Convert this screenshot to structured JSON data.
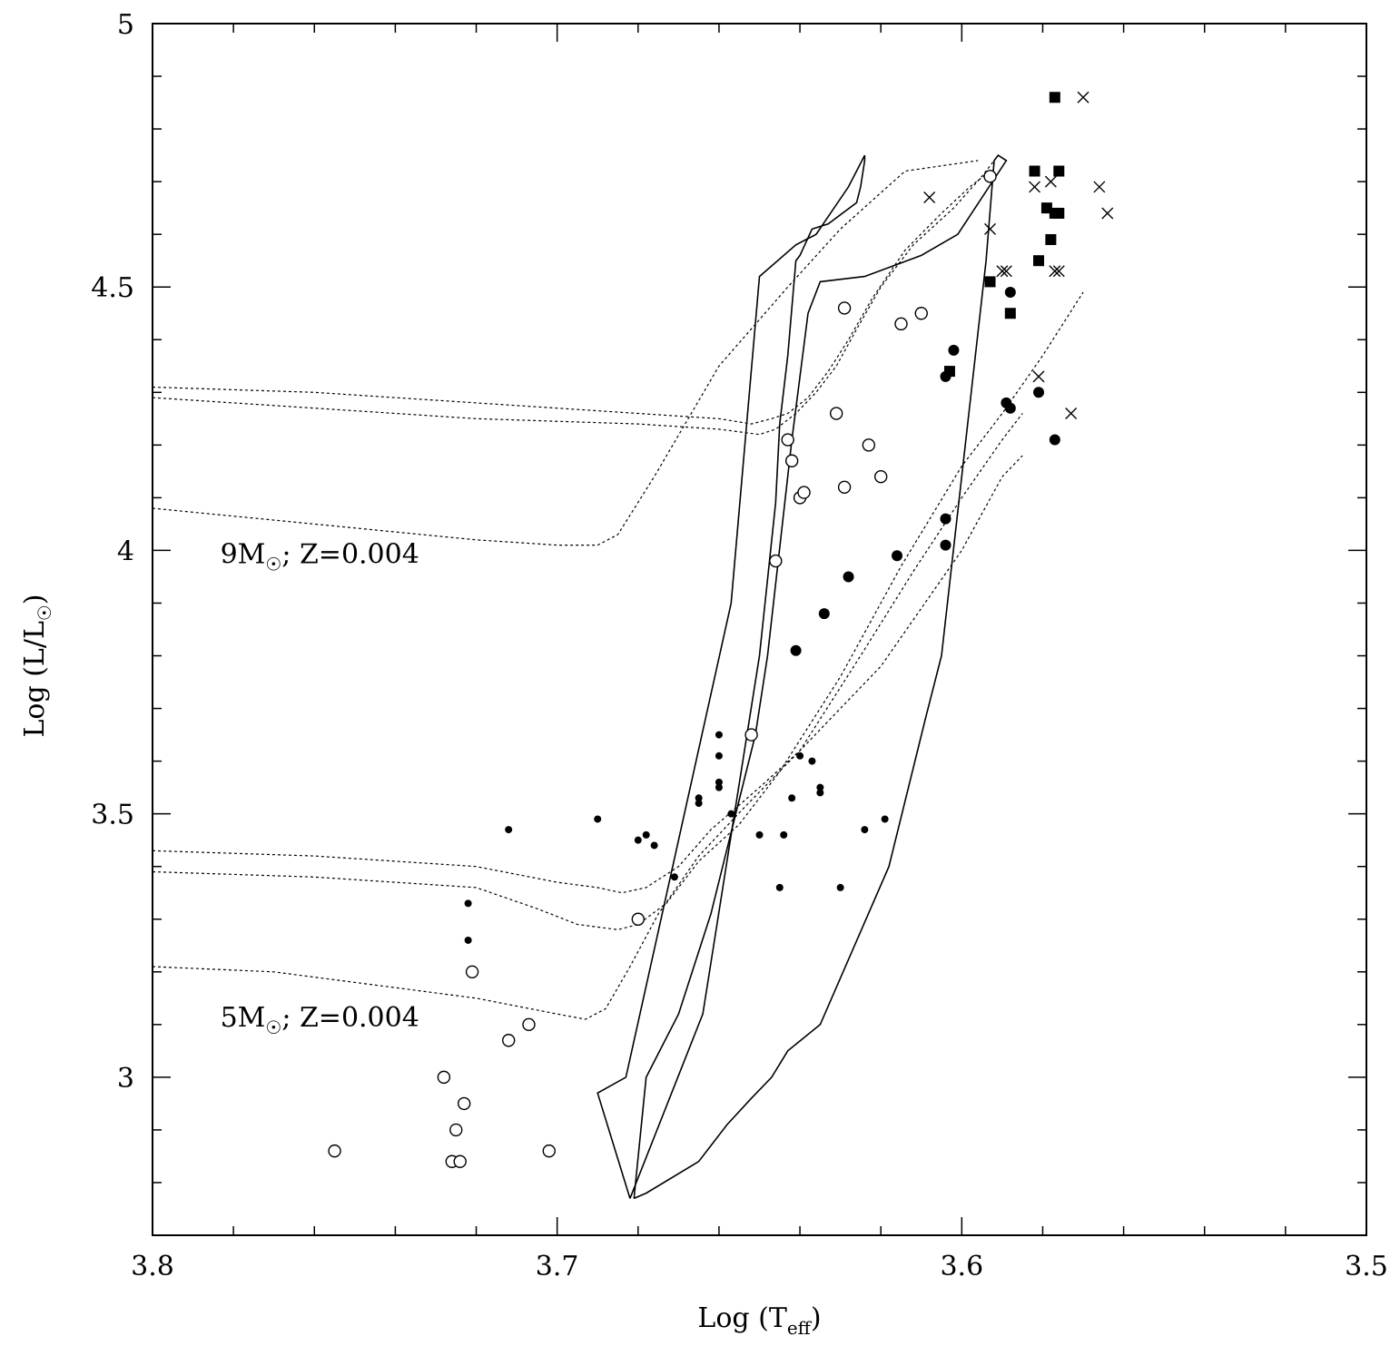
{
  "chart_data": {
    "type": "scatter",
    "title": "",
    "xlabel": "Log (T_eff)",
    "xlabel_parts": {
      "main": "Log (T",
      "sub": "eff",
      "close": ")"
    },
    "ylabel": "Log (L/L☉)",
    "ylabel_parts": {
      "main": "Log (L/L",
      "sun": "☉",
      "close": ")"
    },
    "xlim": [
      3.8,
      3.5
    ],
    "ylim": [
      2.7,
      5.0
    ],
    "x_ticks": [
      "3.8",
      "3.7",
      "3.6",
      "3.5"
    ],
    "x_tick_values": [
      3.8,
      3.7,
      3.6,
      3.5
    ],
    "y_ticks": [
      "3",
      "3.5",
      "4",
      "4.5",
      "5"
    ],
    "y_tick_values": [
      3.0,
      3.5,
      4.0,
      4.5,
      5.0
    ],
    "x_minor_step": 0.02,
    "y_minor_step": 0.1,
    "grid": false,
    "annotations": [
      {
        "mass": "9M",
        "sun": "☉",
        "rest": "; Z=0.004",
        "x": 3.79,
        "y": 4.0
      },
      {
        "mass": "5M",
        "sun": "☉",
        "rest": "; Z=0.004",
        "x": 3.79,
        "y": 3.12
      }
    ],
    "series": [
      {
        "marker": "open-circle",
        "points": [
          [
            3.755,
            2.86
          ],
          [
            3.728,
            3.0
          ],
          [
            3.726,
            2.84
          ],
          [
            3.725,
            2.9
          ],
          [
            3.724,
            2.84
          ],
          [
            3.723,
            2.95
          ],
          [
            3.721,
            3.2
          ],
          [
            3.712,
            3.07
          ],
          [
            3.707,
            3.1
          ],
          [
            3.702,
            2.86
          ],
          [
            3.68,
            3.3
          ],
          [
            3.652,
            3.65
          ],
          [
            3.646,
            3.98
          ],
          [
            3.643,
            4.21
          ],
          [
            3.642,
            4.17
          ],
          [
            3.64,
            4.1
          ],
          [
            3.639,
            4.11
          ],
          [
            3.631,
            4.26
          ],
          [
            3.629,
            4.46
          ],
          [
            3.629,
            4.12
          ],
          [
            3.623,
            4.2
          ],
          [
            3.62,
            4.14
          ],
          [
            3.615,
            4.43
          ],
          [
            3.61,
            4.45
          ],
          [
            3.593,
            4.71
          ]
        ]
      },
      {
        "marker": "filled-circle",
        "points": [
          [
            3.641,
            3.81
          ],
          [
            3.634,
            3.88
          ],
          [
            3.628,
            3.95
          ],
          [
            3.616,
            3.99
          ],
          [
            3.604,
            4.33
          ],
          [
            3.602,
            4.38
          ],
          [
            3.604,
            4.06
          ],
          [
            3.604,
            4.01
          ],
          [
            3.589,
            4.28
          ],
          [
            3.588,
            4.49
          ],
          [
            3.588,
            4.27
          ],
          [
            3.581,
            4.3
          ],
          [
            3.577,
            4.21
          ]
        ]
      },
      {
        "marker": "small-dot",
        "points": [
          [
            3.722,
            3.33
          ],
          [
            3.722,
            3.26
          ],
          [
            3.712,
            3.47
          ],
          [
            3.69,
            3.49
          ],
          [
            3.68,
            3.45
          ],
          [
            3.678,
            3.46
          ],
          [
            3.676,
            3.44
          ],
          [
            3.671,
            3.38
          ],
          [
            3.665,
            3.53
          ],
          [
            3.665,
            3.52
          ],
          [
            3.66,
            3.65
          ],
          [
            3.66,
            3.61
          ],
          [
            3.66,
            3.56
          ],
          [
            3.66,
            3.55
          ],
          [
            3.657,
            3.5
          ],
          [
            3.65,
            3.46
          ],
          [
            3.645,
            3.36
          ],
          [
            3.644,
            3.46
          ],
          [
            3.642,
            3.53
          ],
          [
            3.64,
            3.61
          ],
          [
            3.637,
            3.6
          ],
          [
            3.635,
            3.55
          ],
          [
            3.635,
            3.54
          ],
          [
            3.63,
            3.36
          ],
          [
            3.624,
            3.47
          ],
          [
            3.619,
            3.49
          ]
        ]
      },
      {
        "marker": "filled-square",
        "points": [
          [
            3.577,
            4.86
          ],
          [
            3.582,
            4.72
          ],
          [
            3.576,
            4.72
          ],
          [
            3.579,
            4.65
          ],
          [
            3.577,
            4.64
          ],
          [
            3.576,
            4.64
          ],
          [
            3.578,
            4.59
          ],
          [
            3.581,
            4.55
          ],
          [
            3.593,
            4.51
          ],
          [
            3.588,
            4.45
          ],
          [
            3.603,
            4.34
          ]
        ]
      },
      {
        "marker": "cross",
        "points": [
          [
            3.57,
            4.86
          ],
          [
            3.608,
            4.67
          ],
          [
            3.582,
            4.69
          ],
          [
            3.578,
            4.7
          ],
          [
            3.566,
            4.69
          ],
          [
            3.564,
            4.64
          ],
          [
            3.593,
            4.61
          ],
          [
            3.59,
            4.53
          ],
          [
            3.589,
            4.53
          ],
          [
            3.577,
            4.53
          ],
          [
            3.576,
            4.53
          ],
          [
            3.581,
            4.33
          ],
          [
            3.573,
            4.26
          ]
        ]
      }
    ],
    "solid_curves": [
      [
        [
          3.681,
          2.77
        ],
        [
          3.678,
          2.78
        ],
        [
          3.665,
          2.84
        ],
        [
          3.658,
          2.91
        ],
        [
          3.652,
          2.96
        ],
        [
          3.647,
          3.0
        ],
        [
          3.643,
          3.05
        ],
        [
          3.635,
          3.1
        ],
        [
          3.618,
          3.4
        ],
        [
          3.609,
          3.68
        ],
        [
          3.605,
          3.8
        ],
        [
          3.594,
          4.55
        ],
        [
          3.592,
          4.74
        ],
        [
          3.591,
          4.75
        ],
        [
          3.589,
          4.74
        ],
        [
          3.601,
          4.6
        ],
        [
          3.61,
          4.56
        ],
        [
          3.624,
          4.52
        ],
        [
          3.635,
          4.51
        ],
        [
          3.638,
          4.45
        ],
        [
          3.642,
          4.21
        ],
        [
          3.648,
          3.8
        ],
        [
          3.651,
          3.65
        ],
        [
          3.662,
          3.31
        ],
        [
          3.67,
          3.12
        ],
        [
          3.678,
          3.0
        ],
        [
          3.681,
          2.77
        ]
      ],
      [
        [
          3.682,
          2.77
        ],
        [
          3.664,
          3.12
        ],
        [
          3.65,
          3.8
        ],
        [
          3.646,
          4.09
        ],
        [
          3.645,
          4.24
        ],
        [
          3.643,
          4.37
        ],
        [
          3.641,
          4.55
        ],
        [
          3.64,
          4.56
        ],
        [
          3.637,
          4.61
        ],
        [
          3.633,
          4.62
        ],
        [
          3.626,
          4.66
        ],
        [
          3.625,
          4.69
        ],
        [
          3.624,
          4.74
        ],
        [
          3.624,
          4.75
        ],
        [
          3.628,
          4.69
        ],
        [
          3.636,
          4.6
        ],
        [
          3.641,
          4.58
        ],
        [
          3.65,
          4.52
        ],
        [
          3.657,
          3.9
        ],
        [
          3.683,
          3.0
        ],
        [
          3.69,
          2.97
        ],
        [
          3.682,
          2.77
        ]
      ]
    ],
    "dotted_curves": [
      [
        [
          3.8,
          4.31
        ],
        [
          3.76,
          4.3
        ],
        [
          3.72,
          4.28
        ],
        [
          3.68,
          4.26
        ],
        [
          3.66,
          4.25
        ],
        [
          3.652,
          4.24
        ],
        [
          3.647,
          4.25
        ],
        [
          3.643,
          4.26
        ],
        [
          3.638,
          4.29
        ],
        [
          3.633,
          4.34
        ],
        [
          3.628,
          4.4
        ],
        [
          3.622,
          4.48
        ],
        [
          3.614,
          4.57
        ],
        [
          3.605,
          4.64
        ],
        [
          3.598,
          4.69
        ],
        [
          3.593,
          4.72
        ]
      ],
      [
        [
          3.8,
          4.29
        ],
        [
          3.76,
          4.27
        ],
        [
          3.72,
          4.25
        ],
        [
          3.68,
          4.24
        ],
        [
          3.66,
          4.23
        ],
        [
          3.65,
          4.22
        ],
        [
          3.646,
          4.23
        ],
        [
          3.641,
          4.26
        ],
        [
          3.636,
          4.3
        ],
        [
          3.631,
          4.35
        ],
        [
          3.626,
          4.42
        ],
        [
          3.62,
          4.5
        ],
        [
          3.612,
          4.58
        ],
        [
          3.602,
          4.65
        ],
        [
          3.595,
          4.71
        ],
        [
          3.592,
          4.74
        ]
      ],
      [
        [
          3.8,
          4.08
        ],
        [
          3.76,
          4.05
        ],
        [
          3.72,
          4.02
        ],
        [
          3.7,
          4.01
        ],
        [
          3.69,
          4.01
        ],
        [
          3.685,
          4.03
        ],
        [
          3.676,
          4.14
        ],
        [
          3.66,
          4.35
        ],
        [
          3.643,
          4.5
        ],
        [
          3.63,
          4.61
        ],
        [
          3.614,
          4.72
        ],
        [
          3.596,
          4.74
        ]
      ],
      [
        [
          3.8,
          3.43
        ],
        [
          3.76,
          3.42
        ],
        [
          3.72,
          3.4
        ],
        [
          3.7,
          3.37
        ],
        [
          3.69,
          3.36
        ],
        [
          3.684,
          3.35
        ],
        [
          3.678,
          3.36
        ],
        [
          3.67,
          3.4
        ],
        [
          3.662,
          3.47
        ],
        [
          3.65,
          3.55
        ],
        [
          3.64,
          3.62
        ],
        [
          3.62,
          3.78
        ],
        [
          3.6,
          4.0
        ],
        [
          3.59,
          4.14
        ],
        [
          3.585,
          4.18
        ]
      ],
      [
        [
          3.8,
          3.39
        ],
        [
          3.76,
          3.38
        ],
        [
          3.72,
          3.36
        ],
        [
          3.705,
          3.32
        ],
        [
          3.695,
          3.29
        ],
        [
          3.685,
          3.28
        ],
        [
          3.68,
          3.29
        ],
        [
          3.673,
          3.33
        ],
        [
          3.665,
          3.41
        ],
        [
          3.655,
          3.48
        ],
        [
          3.645,
          3.58
        ],
        [
          3.63,
          3.76
        ],
        [
          3.615,
          3.97
        ],
        [
          3.6,
          4.16
        ],
        [
          3.59,
          4.26
        ],
        [
          3.58,
          4.37
        ],
        [
          3.57,
          4.49
        ]
      ],
      [
        [
          3.8,
          3.21
        ],
        [
          3.77,
          3.2
        ],
        [
          3.74,
          3.17
        ],
        [
          3.72,
          3.15
        ],
        [
          3.7,
          3.12
        ],
        [
          3.693,
          3.11
        ],
        [
          3.688,
          3.13
        ],
        [
          3.682,
          3.21
        ],
        [
          3.675,
          3.31
        ],
        [
          3.665,
          3.42
        ],
        [
          3.654,
          3.51
        ],
        [
          3.64,
          3.62
        ],
        [
          3.625,
          3.8
        ],
        [
          3.612,
          3.96
        ],
        [
          3.6,
          4.1
        ],
        [
          3.59,
          4.21
        ],
        [
          3.585,
          4.26
        ]
      ]
    ]
  }
}
